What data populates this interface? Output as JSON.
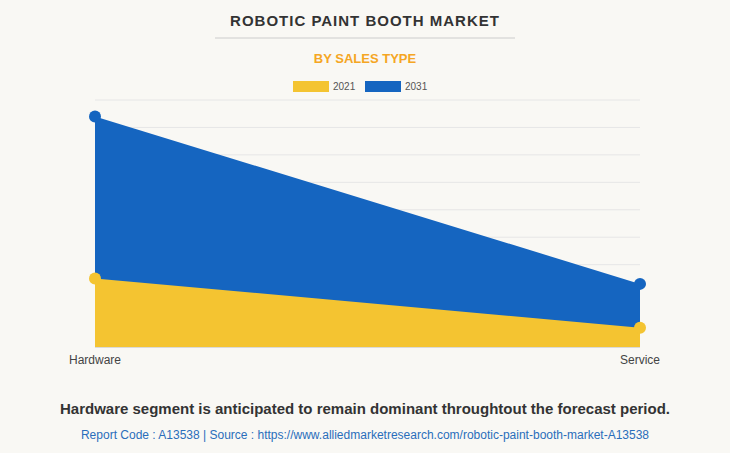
{
  "chart_data": {
    "type": "area",
    "title": "ROBOTIC PAINT BOOTH MARKET",
    "subtitle": "BY SALES TYPE",
    "categories": [
      "Hardware",
      "Service"
    ],
    "series": [
      {
        "name": "2021",
        "color": "#f4c431",
        "values": [
          2.5,
          0.7
        ]
      },
      {
        "name": "2031",
        "color": "#1565c0",
        "values": [
          8.4,
          2.3
        ]
      }
    ],
    "ylim": [
      0,
      9
    ],
    "yticks": [
      0,
      1,
      2,
      3,
      4,
      5,
      6,
      7,
      8,
      9
    ],
    "grid": true,
    "tick_labels": "x",
    "legend": "top",
    "marker": "circle",
    "annotations": [
      "Hardware segment is anticipated to remain dominant throughtout the forecast period.",
      "Report Code : A13538 | Source : https://www.alliedmarketresearch.com/robotic-paint-booth-market-A13538"
    ]
  }
}
